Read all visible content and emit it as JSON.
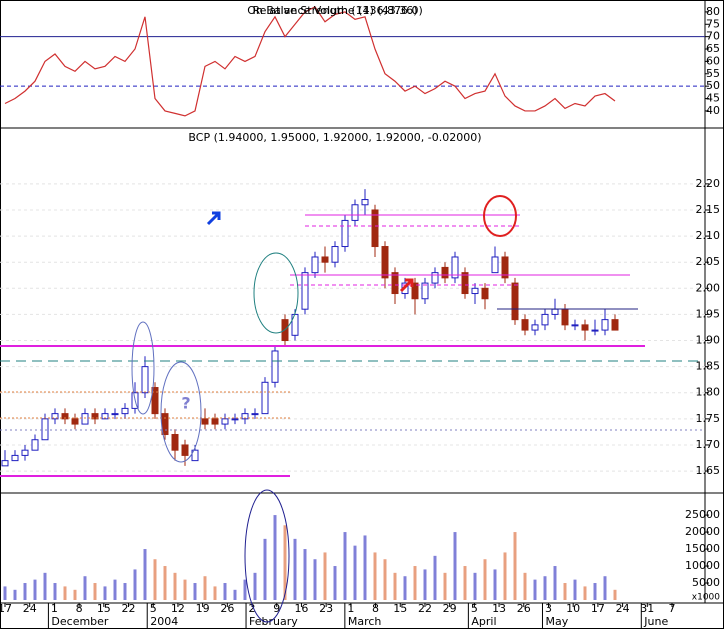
{
  "chart_data": [
    {
      "type": "line",
      "titles": [
        "On Balance Volume (136,876.0)",
        "Relative Strength (14) (43.36)"
      ],
      "series": [
        {
          "color": "#d03030",
          "values": [
            43,
            45,
            48,
            52,
            60,
            63,
            58,
            56,
            60,
            57,
            58,
            62,
            60,
            65,
            78,
            45,
            40,
            39,
            38,
            40,
            58,
            60,
            57,
            62,
            60,
            62,
            72,
            78,
            70,
            75,
            80,
            82,
            76,
            79,
            80,
            77,
            78,
            65,
            55,
            52,
            48,
            50,
            47,
            49,
            52,
            50,
            45,
            47,
            48,
            55,
            46,
            42,
            40,
            40,
            42,
            45,
            41,
            43,
            42,
            46,
            47,
            44
          ]
        }
      ],
      "ylim": [
        33.1,
        84.8
      ],
      "yticks": [
        40,
        45,
        50,
        55,
        60,
        65,
        70,
        75,
        80
      ],
      "hlines": [
        {
          "value": 70,
          "style": "solid",
          "color": "#202090"
        },
        {
          "value": 50,
          "style": "dashed",
          "color": "#2020c0"
        }
      ]
    },
    {
      "type": "candlestick",
      "title": "BCP (1.94000, 1.95000, 1.92000, 1.92000, -0.02000)",
      "open": [
        1.66,
        1.67,
        1.68,
        1.69,
        1.71,
        1.75,
        1.76,
        1.75,
        1.74,
        1.76,
        1.75,
        1.76,
        1.76,
        1.77,
        1.8,
        1.81,
        1.76,
        1.72,
        1.7,
        1.67,
        1.75,
        1.75,
        1.74,
        1.75,
        1.75,
        1.76,
        1.76,
        1.82,
        1.94,
        1.91,
        1.96,
        2.03,
        2.06,
        2.05,
        2.08,
        2.13,
        2.16,
        2.15,
        2.08,
        2.03,
        1.99,
        2.01,
        1.98,
        2.01,
        2.04,
        2.02,
        2.03,
        1.99,
        2.0,
        2.03,
        2.06,
        2.01,
        1.94,
        1.92,
        1.93,
        1.95,
        1.96,
        1.93,
        1.93,
        1.92,
        1.92,
        1.94
      ],
      "high": [
        1.69,
        1.69,
        1.7,
        1.72,
        1.76,
        1.77,
        1.77,
        1.76,
        1.77,
        1.77,
        1.77,
        1.77,
        1.78,
        1.82,
        1.87,
        1.82,
        1.77,
        1.73,
        1.71,
        1.7,
        1.77,
        1.76,
        1.76,
        1.76,
        1.77,
        1.77,
        1.83,
        1.89,
        1.95,
        1.96,
        2.04,
        2.07,
        2.08,
        2.09,
        2.14,
        2.17,
        2.19,
        2.16,
        2.09,
        2.04,
        2.02,
        2.02,
        2.02,
        2.04,
        2.05,
        2.07,
        2.04,
        2.01,
        2.01,
        2.08,
        2.07,
        2.02,
        1.95,
        1.94,
        1.96,
        1.98,
        1.97,
        1.94,
        1.94,
        1.94,
        1.96,
        1.95
      ],
      "low": [
        1.66,
        1.67,
        1.67,
        1.69,
        1.71,
        1.74,
        1.74,
        1.73,
        1.74,
        1.74,
        1.75,
        1.75,
        1.75,
        1.76,
        1.79,
        1.75,
        1.71,
        1.67,
        1.66,
        1.67,
        1.73,
        1.73,
        1.73,
        1.74,
        1.74,
        1.75,
        1.76,
        1.81,
        1.89,
        1.9,
        1.95,
        2.02,
        2.03,
        2.04,
        2.07,
        2.12,
        2.14,
        2.06,
        2.0,
        1.97,
        1.98,
        1.95,
        1.97,
        2.0,
        2.01,
        2.01,
        1.98,
        1.97,
        1.96,
        2.03,
        2.01,
        1.93,
        1.91,
        1.91,
        1.92,
        1.94,
        1.92,
        1.92,
        1.9,
        1.91,
        1.91,
        1.92
      ],
      "close": [
        1.67,
        1.68,
        1.69,
        1.71,
        1.75,
        1.76,
        1.75,
        1.74,
        1.76,
        1.75,
        1.76,
        1.76,
        1.77,
        1.8,
        1.85,
        1.76,
        1.72,
        1.69,
        1.68,
        1.69,
        1.74,
        1.74,
        1.75,
        1.75,
        1.76,
        1.76,
        1.82,
        1.88,
        1.9,
        1.95,
        2.03,
        2.06,
        2.05,
        2.08,
        2.13,
        2.16,
        2.17,
        2.08,
        2.02,
        1.99,
        2.01,
        1.98,
        2.01,
        2.03,
        2.02,
        2.06,
        1.99,
        2.0,
        1.98,
        2.06,
        2.02,
        1.94,
        1.92,
        1.93,
        1.95,
        1.96,
        1.93,
        1.93,
        1.92,
        1.92,
        1.94,
        1.92
      ],
      "up_color": "#2020c0",
      "down_color": "#a02810",
      "ylim": [
        1.608,
        2.307
      ],
      "yticks": [
        {
          "value": 2.2,
          "label": "2.20"
        },
        2.15,
        {
          "value": 2.1,
          "label": "2.10"
        },
        2.05,
        {
          "value": 2.0,
          "label": "2.00"
        },
        1.95,
        {
          "value": 1.9,
          "label": "1.90"
        },
        1.85,
        {
          "value": 1.8,
          "label": "1.80"
        },
        1.75,
        {
          "value": 1.7,
          "label": "1.70"
        },
        1.65
      ],
      "x_labels": [
        "17",
        "24",
        "1",
        "8",
        "15",
        "22",
        "5",
        "12",
        "19",
        "26",
        "2",
        "9",
        "16",
        "23",
        "1",
        "8",
        "15",
        "22",
        "29",
        "5",
        "13",
        "26",
        "3",
        "10",
        "17",
        "24",
        "31",
        "7"
      ],
      "months": [
        "December",
        "2004",
        "February",
        "March",
        "April",
        "May",
        "June"
      ],
      "annotation": "?"
    },
    {
      "type": "bar",
      "unit_label": "x1000",
      "values": [
        4000,
        3000,
        5000,
        6000,
        8000,
        5000,
        4000,
        3000,
        7000,
        5000,
        4000,
        6000,
        5000,
        9000,
        15000,
        12000,
        10000,
        8000,
        6000,
        5000,
        7000,
        4000,
        5000,
        3000,
        6000,
        8000,
        18000,
        25000,
        22000,
        18000,
        15000,
        12000,
        14000,
        10000,
        20000,
        16000,
        19000,
        14000,
        12000,
        8000,
        7000,
        10000,
        9000,
        13000,
        8000,
        20000,
        10000,
        8000,
        12000,
        9000,
        14000,
        20000,
        8000,
        6000,
        7000,
        10000,
        5000,
        6000,
        4000,
        5000,
        7000,
        3000
      ],
      "up_color": "#8080d8",
      "down_color": "#e8a080",
      "ylim": [
        0,
        31500
      ],
      "yticks": [
        5000,
        10000,
        15000,
        20000,
        25000
      ]
    }
  ]
}
